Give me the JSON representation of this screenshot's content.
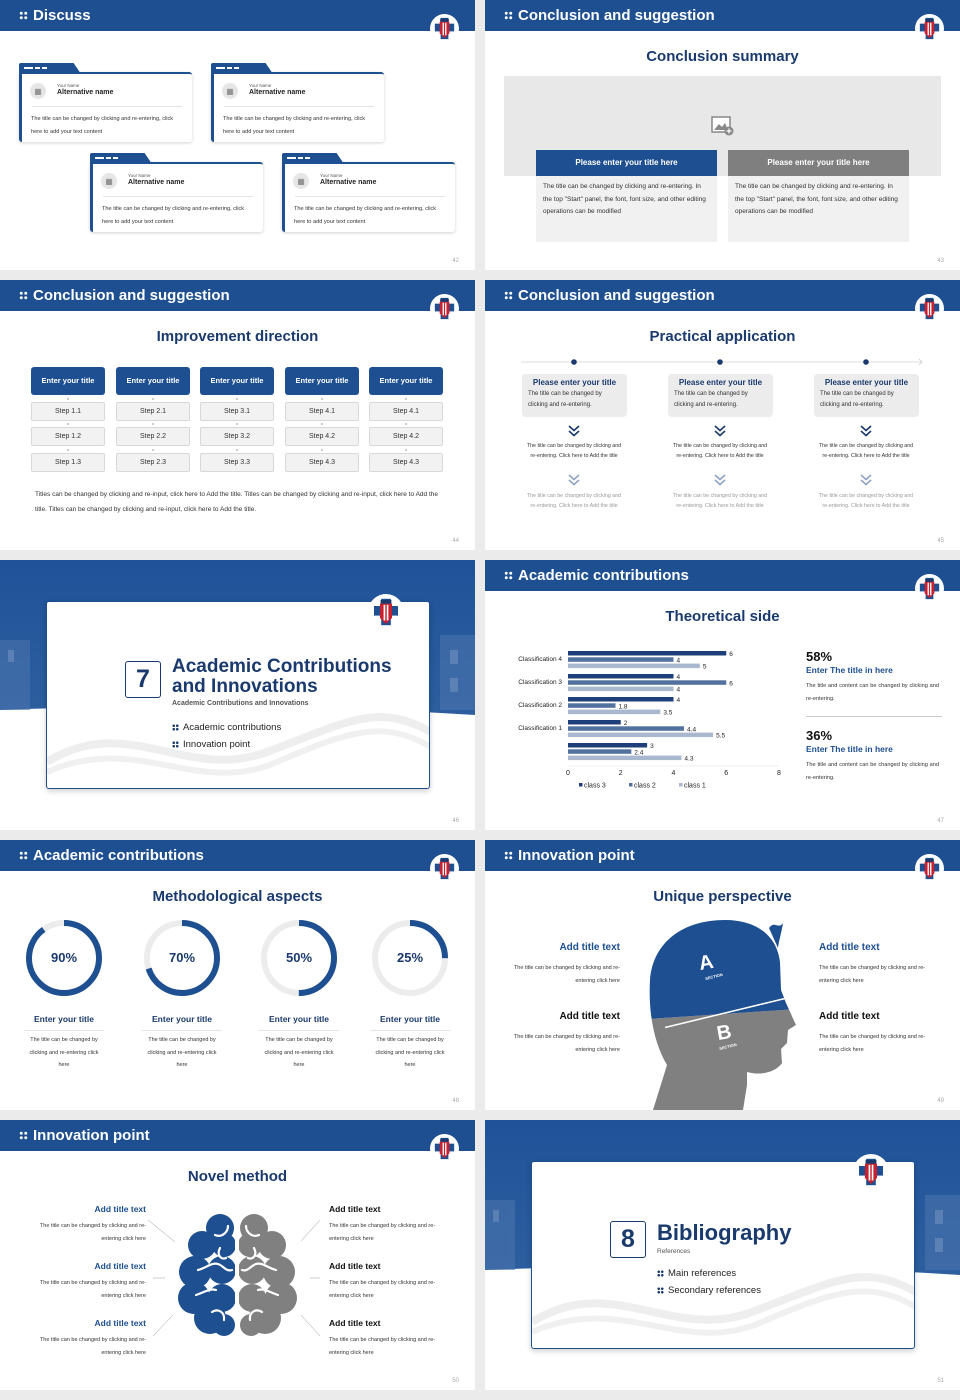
{
  "colors": {
    "brand": "#1d4f91",
    "title": "#1a3a6e",
    "gray": "#808080",
    "page_bg": "#ebebeb",
    "class3": "#1f3f7a",
    "class2": "#52719f",
    "class1": "#a9b7cf"
  },
  "s42": {
    "header": "Discuss",
    "page": "42",
    "cards": [
      {
        "small": "Your Name",
        "name": "Alternative name",
        "text": "The title can be changed by clicking and re-entering, click here to add your text content"
      },
      {
        "small": "Your Name",
        "name": "Alternative name",
        "text": "The title can be changed by clicking and re-entering, click here to add your text content"
      },
      {
        "small": "Your Name",
        "name": "Alternative name",
        "text": "The title can be changed by clicking and re-entering, click here to add your text content"
      },
      {
        "small": "Your Name",
        "name": "Alternative name",
        "text": "The title can be changed by clicking and re-entering, click here to add your text content"
      }
    ]
  },
  "s43": {
    "header": "Conclusion and suggestion",
    "title": "Conclusion summary",
    "page": "43",
    "boxes": [
      {
        "title": "Please enter your title here",
        "text": "The title can be changed by clicking and re-entering. In the top \"Start\" panel, the font, font size, and other editing operations can be modified"
      },
      {
        "title": "Please enter your title here",
        "text": "The title can be changed by clicking and re-entering. In the top \"Start\" panel, the font, font size, and other editing operations can be modified"
      }
    ]
  },
  "s44": {
    "header": "Conclusion and suggestion",
    "title": "Improvement direction",
    "page": "44",
    "columns": [
      {
        "title": "Enter your title",
        "steps": [
          "Step 1.1",
          "Step 1.2",
          "Step 1.3"
        ]
      },
      {
        "title": "Enter your title",
        "steps": [
          "Step 2.1",
          "Step 2.2",
          "Step 2.3"
        ]
      },
      {
        "title": "Enter your title",
        "steps": [
          "Step 3.1",
          "Step 3.2",
          "Step 3.3"
        ]
      },
      {
        "title": "Enter your title",
        "steps": [
          "Step 4.1",
          "Step 4.2",
          "Step 4.3"
        ]
      },
      {
        "title": "Enter your title",
        "steps": [
          "Step 4.1",
          "Step 4.2",
          "Step 4.3"
        ]
      }
    ],
    "note": "Titles can be changed by clicking and re-input, click here to Add the title. Titles can be changed by clicking and re-input, click here to Add the title. Titles can be changed by clicking and re-input, click here to Add the title."
  },
  "s45": {
    "header": "Conclusion and suggestion",
    "title": "Practical application",
    "page": "45",
    "items": [
      {
        "title": "Please enter your title",
        "text": "The title can be changed by clicking and re-entering.",
        "detail1": "The title can be changed by clicking and re-entering. Click here to Add the title",
        "detail2": "The title can be changed by clicking and re-entering. Click here to Add the title"
      },
      {
        "title": "Please enter your title",
        "text": "The title can be changed by clicking and re-entering.",
        "detail1": "The title can be changed by clicking and re-entering. Click here to Add the title",
        "detail2": "The title can be changed by clicking and re-entering. Click here to Add the title"
      },
      {
        "title": "Please enter your title",
        "text": "The title can be changed by clicking and re-entering.",
        "detail1": "The title can be changed by clicking and re-entering. Click here to Add the title",
        "detail2": "The title can be changed by clicking and re-entering. Click here to Add the title"
      }
    ]
  },
  "s46": {
    "number": "7",
    "title": "Academic Contributions and Innovations",
    "subtitle": "Academic Contributions and Innovations",
    "items": [
      "Academic contributions",
      "Innovation point"
    ],
    "page": "46"
  },
  "s47": {
    "header": "Academic contributions",
    "title": "Theoretical side",
    "page": "47",
    "stats": [
      {
        "value": "58%",
        "title": "Enter The title in here",
        "text": "The title and content can be changed by clicking and re-entering."
      },
      {
        "value": "36%",
        "title": "Enter The title in here",
        "text": "The title and content can be changed by clicking and re-entering."
      }
    ]
  },
  "chart_data": {
    "type": "bar",
    "orientation": "horizontal",
    "categories": [
      "Classification 4",
      "Classification 3",
      "Classification 2",
      "Classification 1",
      ""
    ],
    "series": [
      {
        "name": "class 3",
        "values": [
          6,
          4,
          4,
          2,
          3
        ]
      },
      {
        "name": "class 2",
        "values": [
          4,
          6,
          1.8,
          4.4,
          2.4
        ]
      },
      {
        "name": "class 1",
        "values": [
          5,
          4,
          3.5,
          5.5,
          4.3
        ]
      }
    ],
    "xlim": [
      0,
      8
    ],
    "xticks": [
      "0",
      "2",
      "4",
      "6",
      "8"
    ],
    "data_labels": true,
    "grid": false,
    "legend": "bottom"
  },
  "s48": {
    "header": "Academic contributions",
    "title": "Methodological aspects",
    "page": "48",
    "rings": [
      {
        "value": 90,
        "label": "90%",
        "title": "Enter your title",
        "text": "The title can be changed by clicking and re-entering click here"
      },
      {
        "value": 70,
        "label": "70%",
        "title": "Enter your title",
        "text": "The title can be changed by clicking and re-entering click here"
      },
      {
        "value": 50,
        "label": "50%",
        "title": "Enter your title",
        "text": "The title can be changed by clicking and re-entering click here"
      },
      {
        "value": 25,
        "label": "25%",
        "title": "Enter your title",
        "text": "The title can be changed by clicking and re-entering click here"
      }
    ]
  },
  "s49": {
    "header": "Innovation point",
    "title": "Unique perspective",
    "page": "49",
    "section_a": {
      "letter": "A",
      "label": "SECTION"
    },
    "section_b": {
      "letter": "B",
      "label": "SECTION"
    },
    "left": [
      {
        "title": "Add title text",
        "text": "The title can be changed by clicking and re-entering click here"
      },
      {
        "title": "Add title text",
        "text": "The title can be changed by clicking and re-entering click here"
      }
    ],
    "right": [
      {
        "title": "Add title text",
        "text": "The title can be changed by clicking and re-entering click here"
      },
      {
        "title": "Add title text",
        "text": "The title can be changed by clicking and re-entering click here"
      }
    ]
  },
  "s50": {
    "header": "Innovation point",
    "title": "Novel method",
    "page": "50",
    "left": [
      {
        "title": "Add title text",
        "text": "The title can be changed by clicking and re-entering click here"
      },
      {
        "title": "Add title text",
        "text": "The title can be changed by clicking and re-entering click here"
      },
      {
        "title": "Add title text",
        "text": "The title can be changed by clicking and re-entering click here"
      }
    ],
    "right": [
      {
        "title": "Add title text",
        "text": "The title can be changed by clicking and re-entering click here"
      },
      {
        "title": "Add title text",
        "text": "The title can be changed by clicking and re-entering click here"
      },
      {
        "title": "Add title text",
        "text": "The title can be changed by clicking and re-entering click here"
      }
    ]
  },
  "s51": {
    "number": "8",
    "title": "Bibliography",
    "subtitle": "References",
    "items": [
      "Main references",
      "Secondary references"
    ],
    "page": "51"
  }
}
